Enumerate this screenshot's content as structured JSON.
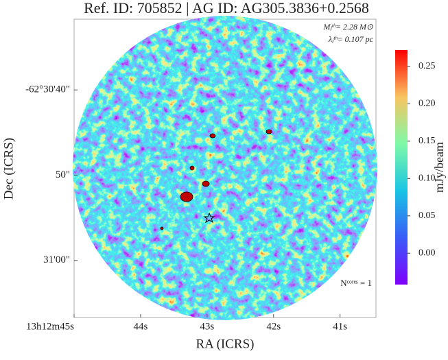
{
  "chart_data": {
    "type": "image",
    "title": "Ref. ID: 705852 | AG ID: AG305.3836+0.2568",
    "xlabel": "RA (ICRS)",
    "ylabel": "Dec (ICRS)",
    "annotations": [
      "Mⱼᵗʰ= 2.28 M⊙",
      "λⱼᵗʰ= 0.107 pc",
      "Nᶜᵒʳᵉˢ = 1"
    ],
    "xlim": [
      45.0,
      40.46
    ],
    "xticks": [
      {
        "value": 45,
        "label": "13h12m45s"
      },
      {
        "value": 44,
        "label": "44s"
      },
      {
        "value": 43,
        "label": "43s"
      },
      {
        "value": 42,
        "label": "42s"
      },
      {
        "value": 41,
        "label": "41s"
      }
    ],
    "ylim": [
      66.7,
      31.7
    ],
    "yticks": [
      {
        "value": 40,
        "label": "-62°30'40\""
      },
      {
        "value": 50,
        "label": "50\""
      },
      {
        "value": 60,
        "label": "31'00\""
      }
    ],
    "colorbar": {
      "label": "mJy/beam",
      "clim": [
        -0.042,
        0.272
      ],
      "ticks": [
        {
          "value": 0,
          "label": "0.00"
        },
        0.05,
        {
          "value": 0.1,
          "label": "0.10"
        },
        0.15,
        {
          "value": 0.2,
          "label": "0.20"
        },
        0.25
      ]
    }
  }
}
